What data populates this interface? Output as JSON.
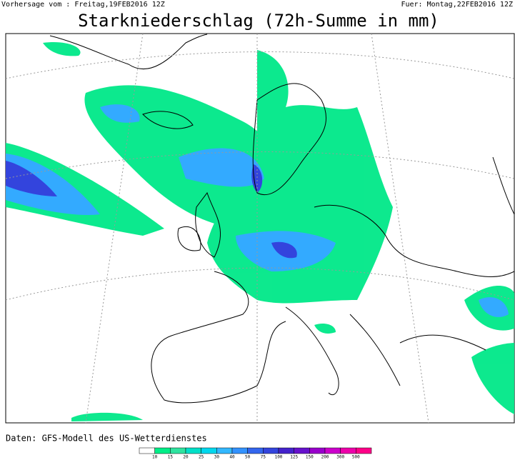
{
  "header": {
    "issued": "Vorhersage vom : Freitag,19FEB2016 12Z",
    "valid": "Fuer: Montag,22FEB2016 12Z",
    "title": "Starkniederschlag (72h-Summe in mm)"
  },
  "footer": {
    "source": "Daten: GFS-Modell des US-Wetterdienstes"
  },
  "legend": {
    "labels": [
      "10",
      "15",
      "20",
      "25",
      "30",
      "40",
      "50",
      "75",
      "100",
      "125",
      "150",
      "200",
      "300",
      "500"
    ],
    "colors": [
      "#ffffff",
      "#00ee88",
      "#2fe3a0",
      "#00e0c8",
      "#00d8ee",
      "#33b8ff",
      "#3392ff",
      "#3366ee",
      "#3344dd",
      "#4422cc",
      "#6611cc",
      "#9900cc",
      "#cc00cc",
      "#ee00aa",
      "#ff0088"
    ]
  }
}
